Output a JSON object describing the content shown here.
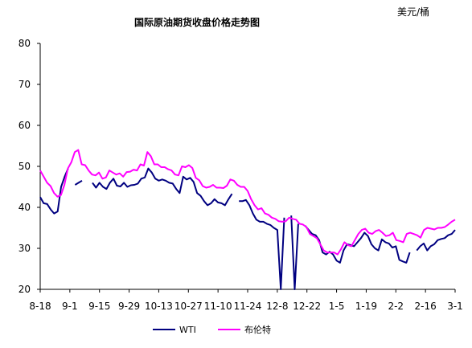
{
  "chart_data": {
    "type": "line",
    "title": "国际原油期货收盘价格走势图",
    "unit": "美元/桶",
    "xlabel": "",
    "ylabel": "",
    "ylim": [
      20,
      80
    ],
    "yticks": [
      20,
      30,
      40,
      50,
      60,
      70,
      80
    ],
    "x_tick_labels": [
      "8-18",
      "9-1",
      "9-15",
      "9-29",
      "10-13",
      "10-27",
      "11-10",
      "11-24",
      "12-8",
      "12-22",
      "1-5",
      "1-19",
      "2-2",
      "2-16",
      "3-1"
    ],
    "grid": false,
    "legend_position": "bottom-center",
    "series": [
      {
        "name": "WTI",
        "color": "#000080",
        "values": [
          42.5,
          41,
          40.8,
          39.5,
          38.5,
          39,
          45,
          47.5,
          49.5,
          null,
          45.5,
          46,
          46.5,
          null,
          null,
          46,
          44.8,
          46,
          45,
          44.5,
          46,
          47,
          45.3,
          45.1,
          46,
          45,
          45.4,
          45.5,
          45.8,
          47,
          47.3,
          49.5,
          48.5,
          47,
          46.5,
          46.8,
          46.5,
          46,
          45.8,
          44.5,
          43.5,
          47.5,
          46.8,
          47.2,
          46.2,
          43.5,
          42.8,
          41.5,
          40.5,
          41,
          42,
          41.2,
          41,
          40.5,
          42,
          43.3,
          null,
          41.5,
          41.5,
          41.8,
          40.5,
          38.5,
          37,
          36.5,
          36.5,
          36,
          35.7,
          35,
          34.5,
          20,
          37.5,
          null,
          38,
          20,
          36,
          null,
          35.5,
          34.5,
          33.5,
          33.2,
          32,
          29,
          28.5,
          29.2,
          28.5,
          27,
          26.5,
          29.5,
          31,
          30.8,
          30.5,
          31.5,
          32.5,
          33.8,
          33,
          31,
          30,
          29.5,
          32.2,
          31.5,
          31.2,
          30.2,
          30.5,
          27.2,
          26.8,
          26.5,
          29,
          null,
          29.5,
          30.5,
          31.2,
          29.5,
          30.5,
          31,
          32,
          32.3,
          32.5,
          33.2,
          33.5,
          34.5
        ]
      },
      {
        "name": "布伦特",
        "color": "#FF00FF",
        "values": [
          49,
          47.5,
          46,
          45.2,
          43.5,
          42.6,
          43,
          45.5,
          49.5,
          51,
          53.5,
          54,
          50.5,
          50.3,
          49,
          48,
          47.8,
          48.5,
          47,
          47.3,
          49,
          48.5,
          48,
          48.3,
          47.5,
          48.6,
          48.7,
          49.2,
          49,
          50.5,
          50.2,
          53.5,
          52.5,
          50.5,
          50.5,
          49.8,
          49.8,
          49.3,
          49,
          48,
          47.8,
          50,
          49.8,
          50.3,
          49.6,
          47.2,
          46.6,
          45.2,
          44.8,
          45,
          45.5,
          44.8,
          44.8,
          44.7,
          45.3,
          46.8,
          46.5,
          45.5,
          45,
          45,
          44,
          42,
          40.5,
          39.5,
          39.8,
          38.5,
          38.2,
          37.5,
          37.2,
          36.6,
          36.5,
          36.6,
          37.5,
          37.2,
          37,
          36,
          35.8,
          35.2,
          33.5,
          33,
          32.5,
          31,
          29.5,
          29,
          29,
          29,
          28.5,
          29.8,
          31.5,
          30.8,
          30.5,
          32,
          33.5,
          34.5,
          34.8,
          33.8,
          33.5,
          34.2,
          34.5,
          33.8,
          33,
          33.2,
          33.8,
          32,
          31.8,
          31.5,
          33.5,
          33.8,
          33.5,
          33.2,
          32.6,
          34.5,
          35,
          34.8,
          34.6,
          35,
          35,
          35.2,
          35.8,
          36.5,
          37
        ]
      }
    ]
  }
}
